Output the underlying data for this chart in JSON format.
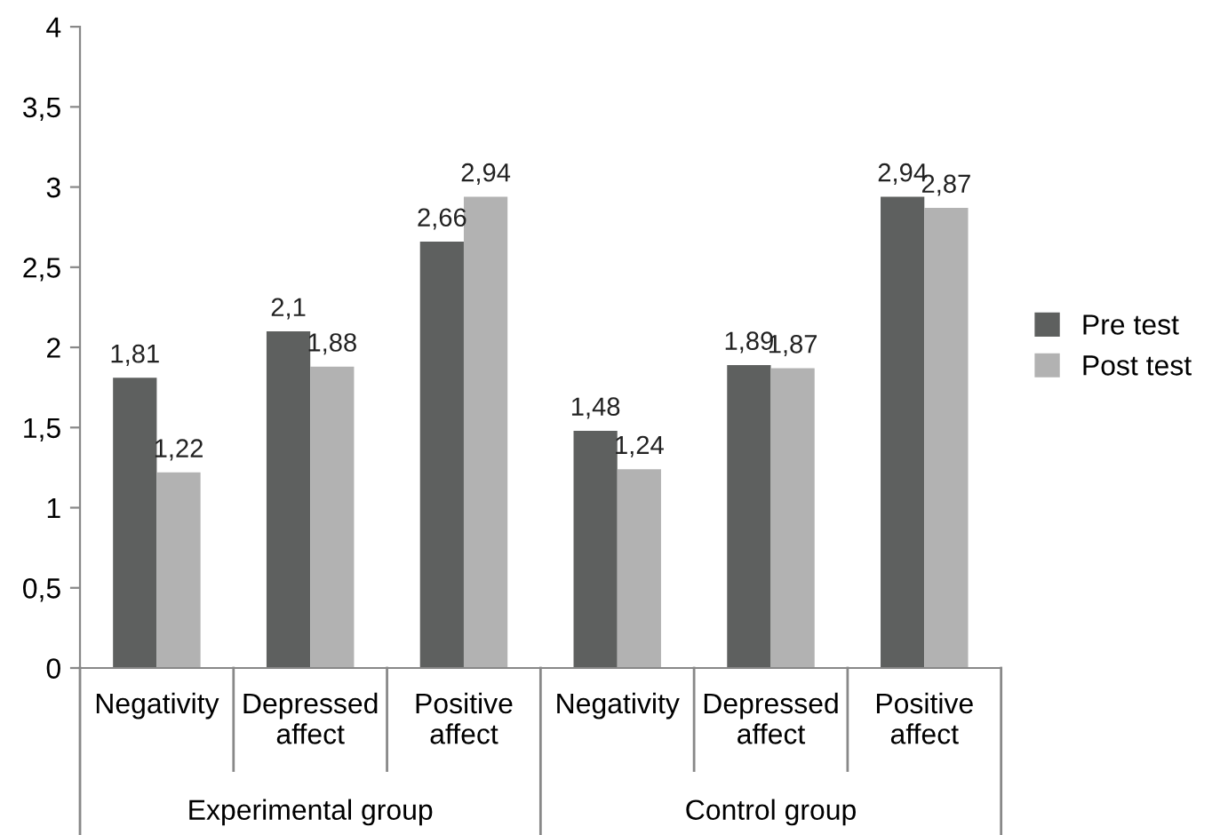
{
  "chart_data": {
    "type": "bar",
    "categories": [
      "Negativity",
      "Depressed affect",
      "Positive affect",
      "Negativity",
      "Depressed affect",
      "Positive affect"
    ],
    "series": [
      {
        "name": "Pre test",
        "color": "#5e605f",
        "values": [
          1.81,
          2.1,
          2.66,
          1.48,
          1.89,
          2.94
        ],
        "value_labels": [
          "1,81",
          "2,1",
          "2,66",
          "1,48",
          "1,89",
          "2,94"
        ]
      },
      {
        "name": "Post test",
        "color": "#b2b2b2",
        "values": [
          1.22,
          1.88,
          2.94,
          1.24,
          1.87,
          2.87
        ],
        "value_labels": [
          "1,22",
          "1,88",
          "2,94",
          "1,24",
          "1,87",
          "2,87"
        ]
      }
    ],
    "annotations": [
      "Experimental group",
      "Control group"
    ],
    "ylim": [
      0,
      4
    ],
    "yticks": [
      0,
      {
        "value": 0.5,
        "label": "0,5"
      },
      1,
      {
        "value": 1.5,
        "label": "1,5"
      },
      2,
      {
        "value": 2.5,
        "label": "2,5"
      },
      3,
      {
        "value": 3.5,
        "label": "3,5"
      },
      4
    ],
    "grid": false,
    "legend": "right"
  }
}
